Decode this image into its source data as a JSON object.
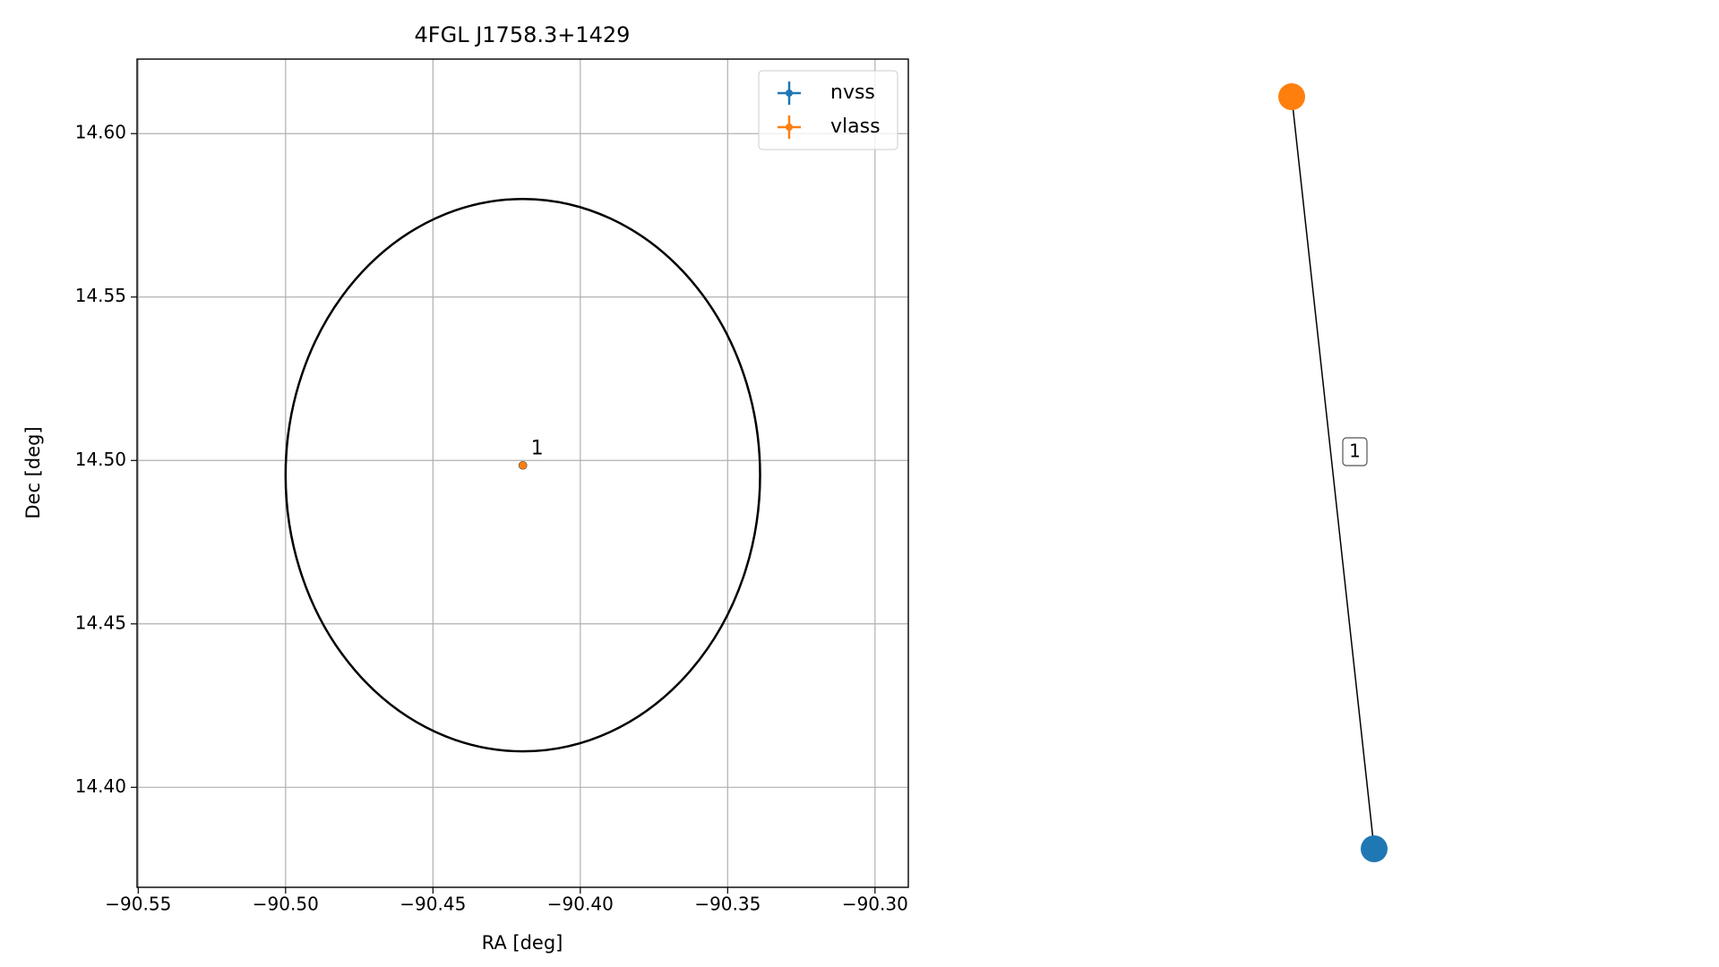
{
  "chart_data": {
    "type": "scatter",
    "title": "4FGL J1758.3+1429",
    "x_label": "RA [deg]",
    "y_label": "Dec [deg]",
    "xlim": [
      -90.5504,
      -90.2887
    ],
    "ylim": [
      14.3694,
      14.6228
    ],
    "xticks": [
      {
        "value": -90.55,
        "label": "−90.55"
      },
      {
        "value": -90.5,
        "label": "−90.50"
      },
      {
        "value": -90.45,
        "label": "−90.45"
      },
      {
        "value": -90.4,
        "label": "−90.40"
      },
      {
        "value": -90.35,
        "label": "−90.35"
      },
      {
        "value": -90.3,
        "label": "−90.30"
      }
    ],
    "yticks": [
      {
        "value": 14.4,
        "label": "14.40"
      },
      14.45,
      {
        "value": 14.5,
        "label": "14.50"
      },
      14.55,
      {
        "value": 14.6,
        "label": "14.60"
      }
    ],
    "grid": true,
    "legend": "upper right",
    "series": [
      {
        "name": "nvss",
        "color": "#1f77b4",
        "x": [
          -90.4195
        ],
        "y": [
          14.4985
        ]
      },
      {
        "name": "vlass",
        "color": "#ff7f0e",
        "x": [
          -90.4195
        ],
        "y": [
          14.4985
        ]
      }
    ],
    "annotations": [
      "1"
    ],
    "ellipse": {
      "center": [
        -90.4195,
        14.4955
      ],
      "half_width": 0.0805,
      "half_height": 0.0845,
      "color": "#000000"
    },
    "graph": {
      "edge_label": "1"
    }
  }
}
